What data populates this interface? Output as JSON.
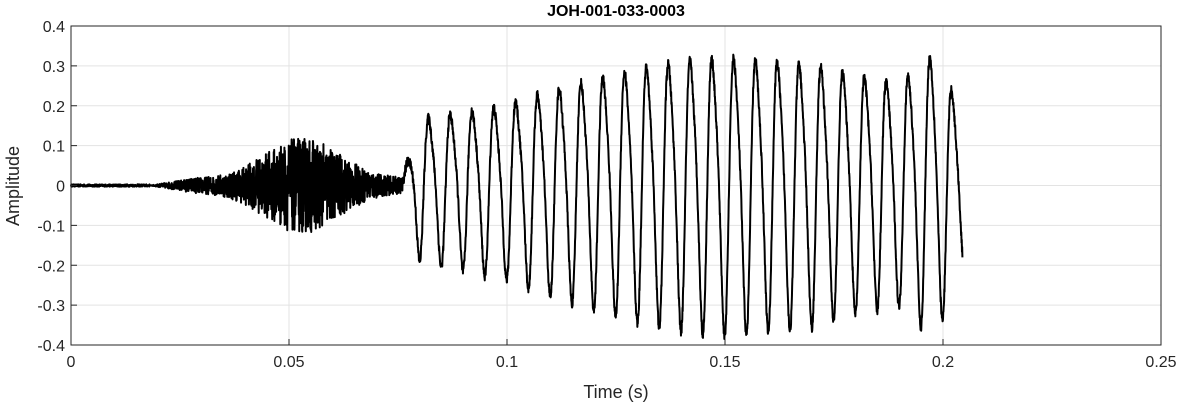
{
  "chart_data": {
    "type": "line",
    "title": "JOH-001-033-0003",
    "xlabel": "Time (s)",
    "ylabel": "Amplitude",
    "xlim": [
      0,
      0.25
    ],
    "ylim": [
      -0.4,
      0.4
    ],
    "xticks": [
      0,
      0.05,
      0.1,
      0.15,
      0.2,
      0.25
    ],
    "xtick_labels": [
      "0",
      "0.05",
      "0.1",
      "0.15",
      "0.2",
      "0.25"
    ],
    "yticks": [
      0.4,
      0.3,
      0.2,
      0.1,
      0,
      -0.1,
      -0.2,
      -0.3,
      -0.4
    ],
    "ytick_labels": [
      "0.4",
      "0.3",
      "0.2",
      "0.1",
      "0",
      "-0.1",
      "-0.2",
      "-0.3",
      "-0.4"
    ],
    "grid": true,
    "line_color": "#000000",
    "series": [
      {
        "signal_end_time": 0.2045,
        "segments": [
          {
            "kind": "flat",
            "from": 0,
            "to": 0.018,
            "amplitude": 0.003
          },
          {
            "kind": "noise",
            "from": 0.018,
            "to": 0.076,
            "peak_time": 0.053,
            "peak_amplitude": 0.12
          },
          {
            "kind": "oscillation",
            "from": 0.076,
            "to": 0.2045,
            "frequency_hz": 200,
            "envelope": [
              [
                0.076,
                0.02
              ],
              [
                0.08,
                0.18
              ],
              [
                0.09,
                0.2
              ],
              [
                0.1,
                0.22
              ],
              [
                0.11,
                0.26
              ],
              [
                0.12,
                0.29
              ],
              [
                0.13,
                0.32
              ],
              [
                0.14,
                0.34
              ],
              [
                0.15,
                0.35
              ],
              [
                0.16,
                0.34
              ],
              [
                0.17,
                0.33
              ],
              [
                0.18,
                0.3
              ],
              [
                0.19,
                0.28
              ],
              [
                0.198,
                0.36
              ],
              [
                0.2045,
                0.2
              ]
            ]
          }
        ]
      }
    ]
  }
}
